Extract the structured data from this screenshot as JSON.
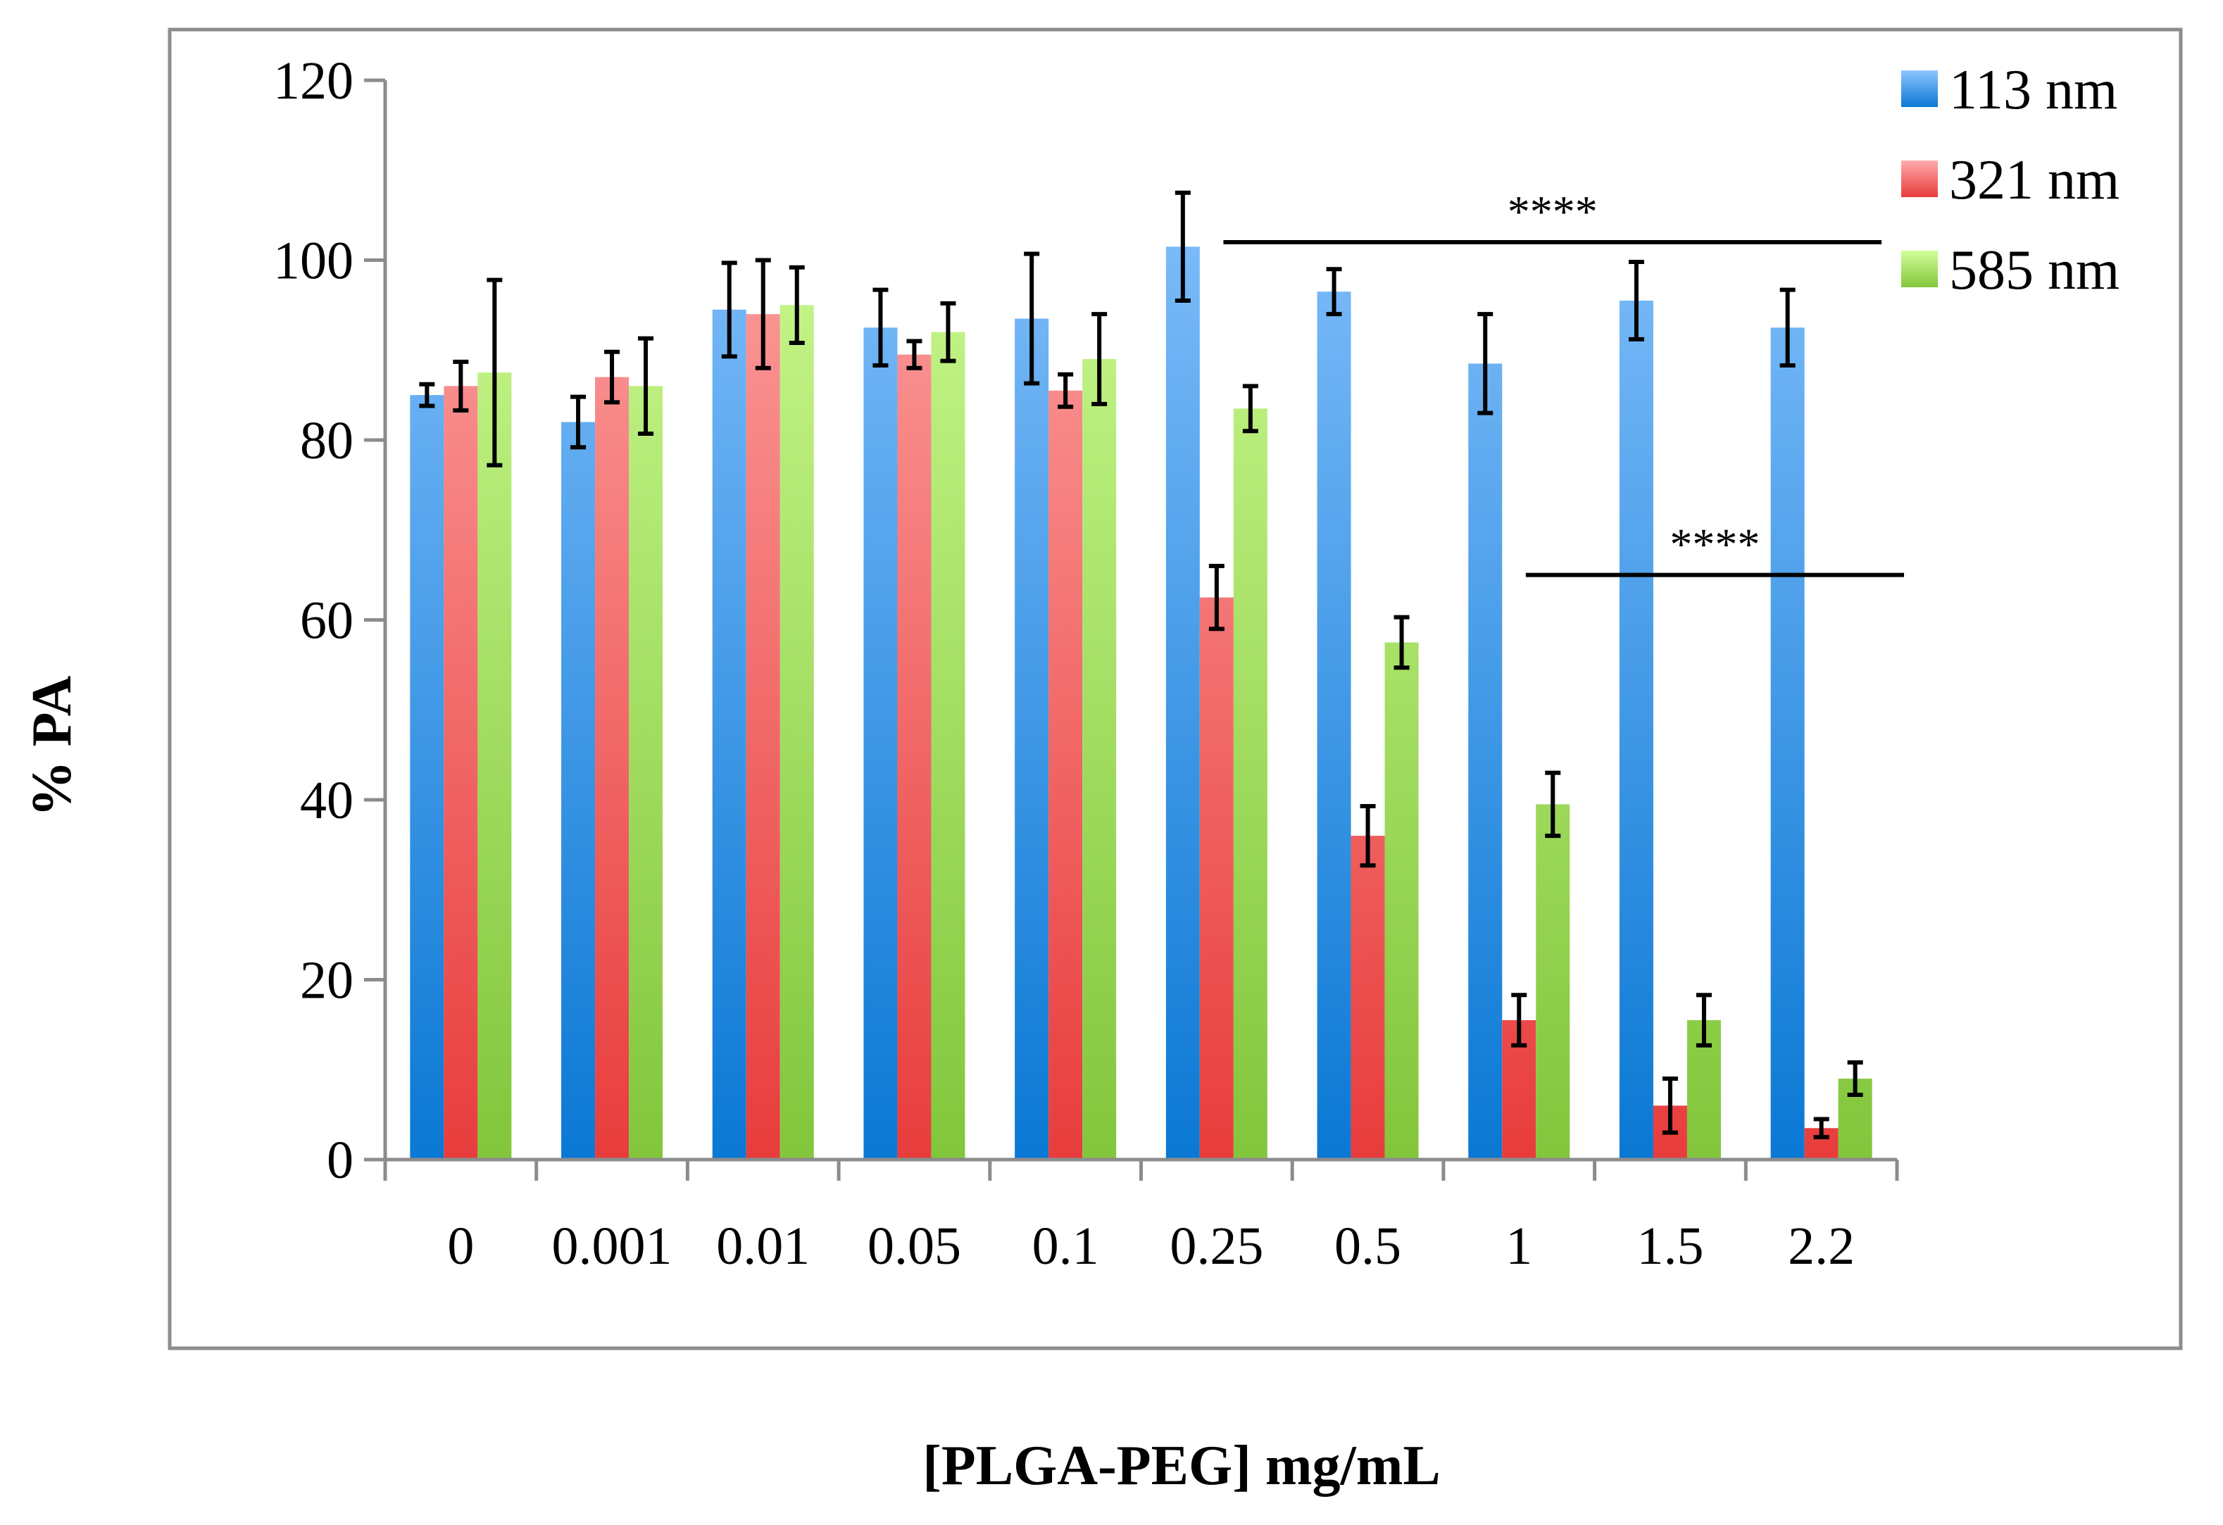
{
  "chart_data": {
    "type": "bar",
    "title": "",
    "xlabel": "[PLGA-PEG] mg/mL",
    "ylabel": "% PA",
    "ylim": [
      0,
      120
    ],
    "yticks": [
      "0",
      "20",
      "40",
      "60",
      "80",
      "100",
      "120"
    ],
    "categories": [
      "0",
      "0.001",
      "0.01",
      "0.05",
      "0.1",
      "0.25",
      "0.5",
      "1",
      "1.5",
      "2.2"
    ],
    "legend_position": "top-right",
    "series": [
      {
        "name": "113 nm",
        "color_top": "#8ec6ff",
        "color_bottom": "#0a78d4",
        "values": [
          85,
          82,
          94.5,
          92.5,
          93.5,
          101.5,
          96.5,
          88.5,
          95.5,
          92.5
        ],
        "errors": [
          1.2,
          2.8,
          5.2,
          4.2,
          7.2,
          6.0,
          2.5,
          5.5,
          4.3,
          4.2
        ]
      },
      {
        "name": "321 nm",
        "color_top": "#ffabab",
        "color_bottom": "#e83c3c",
        "values": [
          86,
          87,
          94,
          89.5,
          85.5,
          62.5,
          36,
          15.5,
          6,
          3.5
        ],
        "errors": [
          2.7,
          2.8,
          6.0,
          1.5,
          1.8,
          3.5,
          3.3,
          2.8,
          3.0,
          1.0
        ]
      },
      {
        "name": "585 nm",
        "color_top": "#d2ff99",
        "color_bottom": "#82c63c",
        "values": [
          87.5,
          86,
          95,
          92,
          89,
          83.5,
          57.5,
          39.5,
          15.5,
          9
        ],
        "errors": [
          10.3,
          5.3,
          4.2,
          3.2,
          5.0,
          2.5,
          2.8,
          3.5,
          2.8,
          1.8
        ]
      }
    ],
    "annotations": [
      {
        "text": "****",
        "y": 102,
        "from_category": "0.25",
        "to_category": "2.2"
      },
      {
        "text": "****",
        "y": 65,
        "from_category": "1",
        "to_category": "2.2"
      }
    ]
  }
}
